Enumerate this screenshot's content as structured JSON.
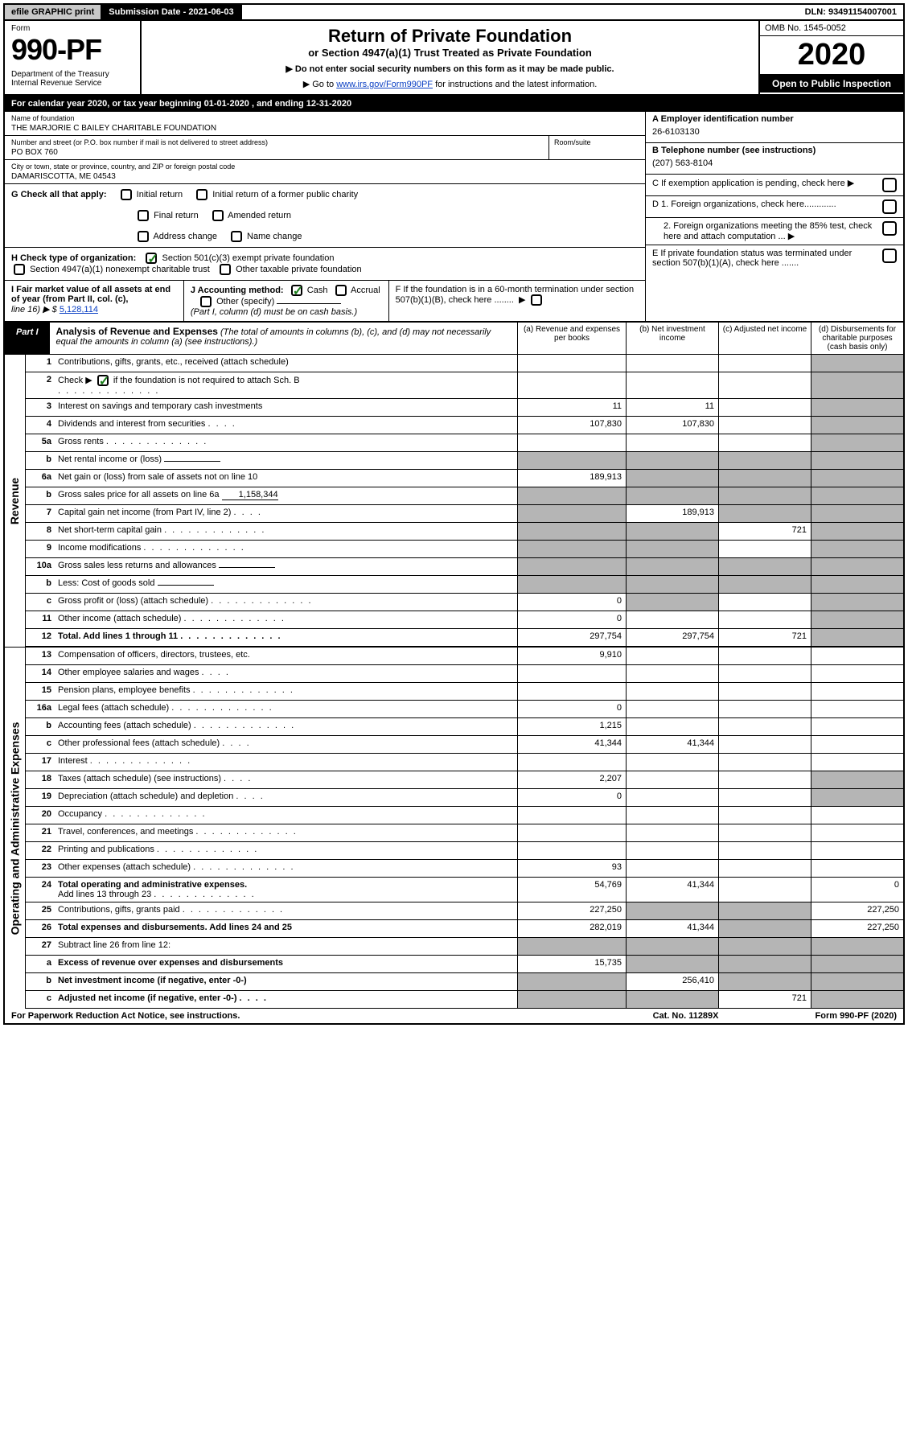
{
  "topbar": {
    "efile": "efile GRAPHIC print",
    "subdate_label": "Submission Date - 2021-06-03",
    "dln": "DLN: 93491154007001"
  },
  "header": {
    "form": "Form",
    "formnum": "990-PF",
    "dept": "Department of the Treasury\nInternal Revenue Service",
    "title": "Return of Private Foundation",
    "subtitle": "or Section 4947(a)(1) Trust Treated as Private Foundation",
    "instr1": "▶ Do not enter social security numbers on this form as it may be made public.",
    "instr2_pre": "▶ Go to ",
    "instr2_link": "www.irs.gov/Form990PF",
    "instr2_post": " for instructions and the latest information.",
    "omb": "OMB No. 1545-0052",
    "year": "2020",
    "open": "Open to Public Inspection"
  },
  "calyear": "For calendar year 2020, or tax year beginning 01-01-2020                          , and ending 12-31-2020",
  "name": {
    "label": "Name of foundation",
    "val": "THE MARJORIE C BAILEY CHARITABLE FOUNDATION"
  },
  "addr": {
    "label": "Number and street (or P.O. box number if mail is not delivered to street address)",
    "val": "PO BOX 760",
    "room": "Room/suite"
  },
  "city": {
    "label": "City or town, state or province, country, and ZIP or foreign postal code",
    "val": "DAMARISCOTTA, ME  04543"
  },
  "ein": {
    "lbl": "A Employer identification number",
    "val": "26-6103130"
  },
  "tel": {
    "lbl": "B Telephone number (see instructions)",
    "val": "(207) 563-8104"
  },
  "c": "C If exemption application is pending, check here ▶",
  "d1": "D 1. Foreign organizations, check here.............",
  "d2": "2. Foreign organizations meeting the 85% test, check here and attach computation ...  ▶",
  "e": "E If private foundation status was terminated under section 507(b)(1)(A), check here .......",
  "f": "F If the foundation is in a 60-month termination under section 507(b)(1)(B), check here ........",
  "g": {
    "lbl": "G Check all that apply:",
    "o1": "Initial return",
    "o2": "Initial return of a former public charity",
    "o3": "Final return",
    "o4": "Amended return",
    "o5": "Address change",
    "o6": "Name change"
  },
  "h": {
    "lbl": "H Check type of organization:",
    "o1": "Section 501(c)(3) exempt private foundation",
    "o2": "Section 4947(a)(1) nonexempt charitable trust",
    "o3": "Other taxable private foundation"
  },
  "i": {
    "lbl": "I Fair market value of all assets at end of year (from Part II, col. (c),",
    "line": "line 16) ▶ $",
    "val": "5,128,114"
  },
  "j": {
    "lbl": "J Accounting method:",
    "o1": "Cash",
    "o2": "Accrual",
    "o3": "Other (specify)",
    "note": "(Part I, column (d) must be on cash basis.)"
  },
  "part1": {
    "label": "Part I",
    "title": "Analysis of Revenue and Expenses",
    "note": "(The total of amounts in columns (b), (c), and (d) may not necessarily equal the amounts in column (a) (see instructions).)",
    "cols": {
      "a": "(a)    Revenue and expenses per books",
      "b": "(b)   Net investment income",
      "c": "(c)   Adjusted net income",
      "d": "(d)   Disbursements for charitable purposes (cash basis only)"
    }
  },
  "side": {
    "rev": "Revenue",
    "exp": "Operating and Administrative Expenses"
  },
  "rows": {
    "r1": {
      "ln": "1",
      "d": "Contributions, gifts, grants, etc., received (attach schedule)"
    },
    "r2": {
      "ln": "2",
      "d": "Check ▶",
      "d2": " if the foundation is not required to attach Sch. B"
    },
    "r3": {
      "ln": "3",
      "d": "Interest on savings and temporary cash investments",
      "a": "11",
      "b": "11"
    },
    "r4": {
      "ln": "4",
      "d": "Dividends and interest from securities",
      "a": "107,830",
      "b": "107,830"
    },
    "r5a": {
      "ln": "5a",
      "d": "Gross rents"
    },
    "r5b": {
      "ln": "b",
      "d": "Net rental income or (loss)"
    },
    "r6a": {
      "ln": "6a",
      "d": "Net gain or (loss) from sale of assets not on line 10",
      "a": "189,913"
    },
    "r6b": {
      "ln": "b",
      "d": "Gross sales price for all assets on line 6a",
      "v": "1,158,344"
    },
    "r7": {
      "ln": "7",
      "d": "Capital gain net income (from Part IV, line 2)",
      "b": "189,913"
    },
    "r8": {
      "ln": "8",
      "d": "Net short-term capital gain",
      "c": "721"
    },
    "r9": {
      "ln": "9",
      "d": "Income modifications"
    },
    "r10a": {
      "ln": "10a",
      "d": "Gross sales less returns and allowances"
    },
    "r10b": {
      "ln": "b",
      "d": "Less: Cost of goods sold"
    },
    "r10c": {
      "ln": "c",
      "d": "Gross profit or (loss) (attach schedule)",
      "a": "0"
    },
    "r11": {
      "ln": "11",
      "d": "Other income (attach schedule)",
      "a": "0"
    },
    "r12": {
      "ln": "12",
      "d": "Total. Add lines 1 through 11",
      "a": "297,754",
      "b": "297,754",
      "c": "721"
    },
    "r13": {
      "ln": "13",
      "d": "Compensation of officers, directors, trustees, etc.",
      "a": "9,910"
    },
    "r14": {
      "ln": "14",
      "d": "Other employee salaries and wages"
    },
    "r15": {
      "ln": "15",
      "d": "Pension plans, employee benefits"
    },
    "r16a": {
      "ln": "16a",
      "d": "Legal fees (attach schedule)",
      "a": "0"
    },
    "r16b": {
      "ln": "b",
      "d": "Accounting fees (attach schedule)",
      "a": "1,215"
    },
    "r16c": {
      "ln": "c",
      "d": "Other professional fees (attach schedule)",
      "a": "41,344",
      "b": "41,344"
    },
    "r17": {
      "ln": "17",
      "d": "Interest"
    },
    "r18": {
      "ln": "18",
      "d": "Taxes (attach schedule) (see instructions)",
      "a": "2,207"
    },
    "r19": {
      "ln": "19",
      "d": "Depreciation (attach schedule) and depletion",
      "a": "0"
    },
    "r20": {
      "ln": "20",
      "d": "Occupancy"
    },
    "r21": {
      "ln": "21",
      "d": "Travel, conferences, and meetings"
    },
    "r22": {
      "ln": "22",
      "d": "Printing and publications"
    },
    "r23": {
      "ln": "23",
      "d": "Other expenses (attach schedule)",
      "a": "93"
    },
    "r24": {
      "ln": "24",
      "d": "Total operating and administrative expenses.",
      "d2": "Add lines 13 through 23",
      "a": "54,769",
      "b": "41,344",
      "dd": "0"
    },
    "r25": {
      "ln": "25",
      "d": "Contributions, gifts, grants paid",
      "a": "227,250",
      "dd": "227,250"
    },
    "r26": {
      "ln": "26",
      "d": "Total expenses and disbursements. Add lines 24 and 25",
      "a": "282,019",
      "b": "41,344",
      "dd": "227,250"
    },
    "r27": {
      "ln": "27",
      "d": "Subtract line 26 from line 12:"
    },
    "r27a": {
      "ln": "a",
      "d": "Excess of revenue over expenses and disbursements",
      "a": "15,735"
    },
    "r27b": {
      "ln": "b",
      "d": "Net investment income (if negative, enter -0-)",
      "b": "256,410"
    },
    "r27c": {
      "ln": "c",
      "d": "Adjusted net income (if negative, enter -0-)",
      "c": "721"
    }
  },
  "footer": {
    "l": "For Paperwork Reduction Act Notice, see instructions.",
    "c": "Cat. No. 11289X",
    "r": "Form 990-PF (2020)"
  }
}
